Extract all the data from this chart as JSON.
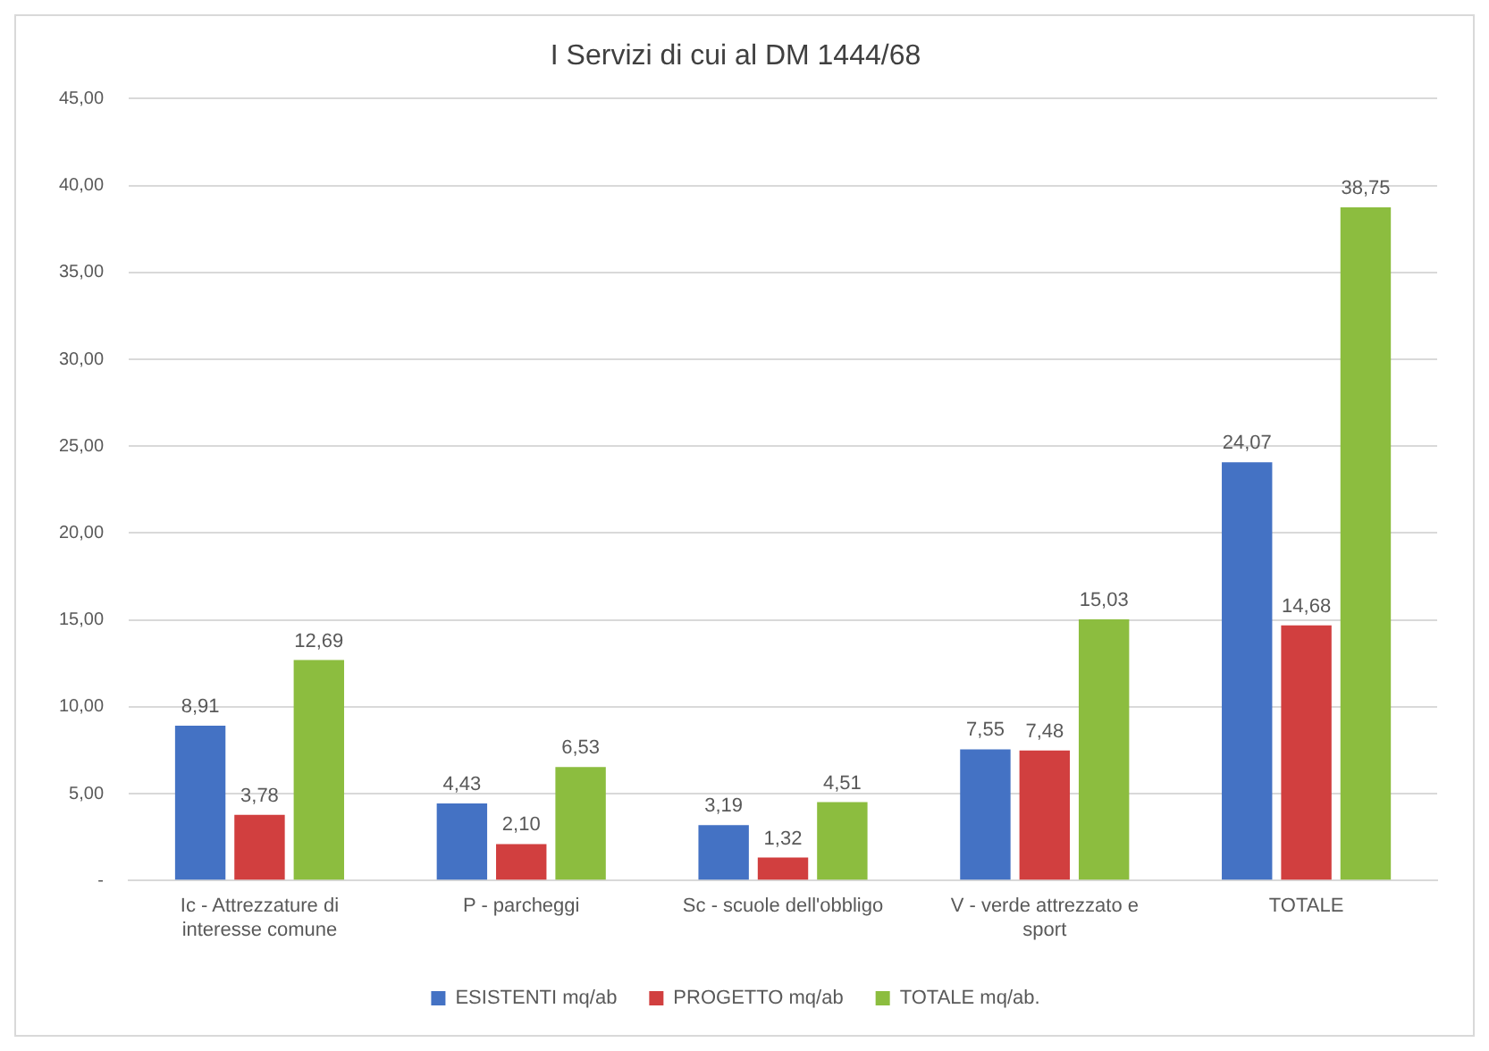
{
  "chart_data": {
    "type": "bar",
    "title": "I Servizi di cui al DM 1444/68",
    "categories": [
      "Ic - Attrezzature di interesse comune",
      "P - parcheggi",
      "Sc - scuole dell'obbligo",
      "V - verde attrezzato e sport",
      "TOTALE"
    ],
    "series": [
      {
        "name": "ESISTENTI mq/ab",
        "color": "#4472c4",
        "values": [
          8.91,
          4.43,
          3.19,
          7.55,
          24.07
        ],
        "value_labels": [
          "8,91",
          "4,43",
          "3,19",
          "7,55",
          "24,07"
        ]
      },
      {
        "name": "PROGETTO mq/ab",
        "color": "#d13f3f",
        "values": [
          3.78,
          2.1,
          1.32,
          7.48,
          14.68
        ],
        "value_labels": [
          "3,78",
          "2,10",
          "1,32",
          "7,48",
          "14,68"
        ]
      },
      {
        "name": "TOTALE mq/ab.",
        "color": "#8cbd3f",
        "values": [
          12.69,
          6.53,
          4.51,
          15.03,
          38.75
        ],
        "value_labels": [
          "12,69",
          "6,53",
          "4,51",
          "15,03",
          "38,75"
        ]
      }
    ],
    "ylim": [
      0,
      45
    ],
    "yticks": [
      {
        "value": 0,
        "label": "-"
      },
      {
        "value": 5,
        "label": "5,00"
      },
      {
        "value": 10,
        "label": "10,00"
      },
      {
        "value": 15,
        "label": "15,00"
      },
      {
        "value": 20,
        "label": "20,00"
      },
      {
        "value": 25,
        "label": "25,00"
      },
      {
        "value": 30,
        "label": "30,00"
      },
      {
        "value": 35,
        "label": "35,00"
      },
      {
        "value": 40,
        "label": "40,00"
      },
      {
        "value": 45,
        "label": "45,00"
      }
    ],
    "grid": "y",
    "legend": "bottom"
  }
}
